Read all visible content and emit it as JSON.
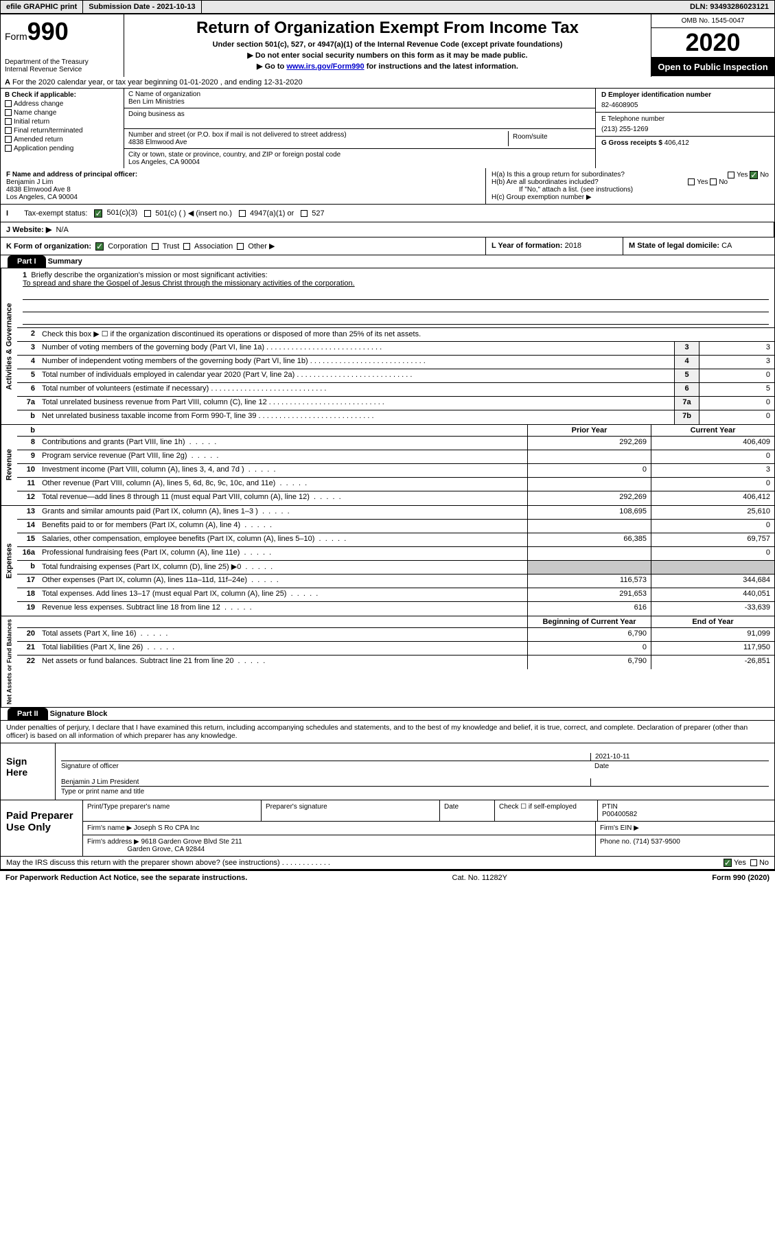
{
  "topbar": {
    "efile": "efile GRAPHIC print",
    "submission": "Submission Date - 2021-10-13",
    "dln": "DLN: 93493286023121"
  },
  "header": {
    "form_label": "Form",
    "form_num": "990",
    "dept": "Department of the Treasury\nInternal Revenue Service",
    "title": "Return of Organization Exempt From Income Tax",
    "subtitle": "Under section 501(c), 527, or 4947(a)(1) of the Internal Revenue Code (except private foundations)",
    "note1": "▶ Do not enter social security numbers on this form as it may be made public.",
    "note2_pre": "▶ Go to ",
    "note2_link": "www.irs.gov/Form990",
    "note2_post": " for instructions and the latest information.",
    "omb": "OMB No. 1545-0047",
    "year": "2020",
    "open": "Open to Public Inspection"
  },
  "section_a": "For the 2020 calendar year, or tax year beginning 01-01-2020    , and ending 12-31-2020",
  "box_b": {
    "hdr": "B Check if applicable:",
    "items": [
      "Address change",
      "Name change",
      "Initial return",
      "Final return/terminated",
      "Amended return",
      "Application pending"
    ]
  },
  "box_c": {
    "name_lbl": "C Name of organization",
    "name": "Ben Lim Ministries",
    "dba_lbl": "Doing business as",
    "addr_lbl": "Number and street (or P.O. box if mail is not delivered to street address)",
    "room_lbl": "Room/suite",
    "addr": "4838 Elmwood Ave",
    "city_lbl": "City or town, state or province, country, and ZIP or foreign postal code",
    "city": "Los Angeles, CA   90004"
  },
  "box_d": {
    "ein_lbl": "D Employer identification number",
    "ein": "82-4608905",
    "phone_lbl": "E Telephone number",
    "phone": "(213) 255-1269",
    "gross_lbl": "G Gross receipts $",
    "gross": "406,412"
  },
  "box_f": {
    "lbl": "F  Name and address of principal officer:",
    "name": "Benjamin J Lim",
    "addr1": "4838 Elmwood Ave 8",
    "addr2": "Los Angeles, CA   90004"
  },
  "box_h": {
    "ha": "H(a)  Is this a group return for subordinates?",
    "hb": "H(b)  Are all subordinates included?",
    "hb_note": "If \"No,\" attach a list. (see instructions)",
    "hc": "H(c)  Group exemption number ▶"
  },
  "tax_status": {
    "lbl": "Tax-exempt status:",
    "opts": [
      "501(c)(3)",
      "501(c) (  ) ◀ (insert no.)",
      "4947(a)(1) or",
      "527"
    ]
  },
  "website": {
    "lbl": "J  Website: ▶",
    "val": "N/A"
  },
  "row_k": {
    "k": "K Form of organization:",
    "opts": [
      "Corporation",
      "Trust",
      "Association",
      "Other ▶"
    ],
    "l_lbl": "L Year of formation:",
    "l_val": "2018",
    "m_lbl": "M State of legal domicile:",
    "m_val": "CA"
  },
  "part1": {
    "hdr": "Part I",
    "title": "Summary",
    "q1": "Briefly describe the organization's mission or most significant activities:",
    "mission": "To spread and share the Gospel of Jesus Christ through the missionary activities of the corporation.",
    "q2": "Check this box ▶ ☐  if the organization discontinued its operations or disposed of more than 25% of its net assets.",
    "side1": "Activities & Governance",
    "side2": "Revenue",
    "side3": "Expenses",
    "side4": "Net Assets or Fund Balances",
    "lines_gov": [
      {
        "n": "3",
        "t": "Number of voting members of the governing body (Part VI, line 1a)",
        "box": "3",
        "v": "3"
      },
      {
        "n": "4",
        "t": "Number of independent voting members of the governing body (Part VI, line 1b)",
        "box": "4",
        "v": "3"
      },
      {
        "n": "5",
        "t": "Total number of individuals employed in calendar year 2020 (Part V, line 2a)",
        "box": "5",
        "v": "0"
      },
      {
        "n": "6",
        "t": "Total number of volunteers (estimate if necessary)",
        "box": "6",
        "v": "5"
      },
      {
        "n": "7a",
        "t": "Total unrelated business revenue from Part VIII, column (C), line 12",
        "box": "7a",
        "v": "0"
      },
      {
        "n": "b",
        "t": "Net unrelated business taxable income from Form 990-T, line 39",
        "box": "7b",
        "v": "0"
      }
    ],
    "hdr_prior": "Prior Year",
    "hdr_current": "Current Year",
    "lines_rev": [
      {
        "n": "8",
        "t": "Contributions and grants (Part VIII, line 1h)",
        "c1": "292,269",
        "c2": "406,409"
      },
      {
        "n": "9",
        "t": "Program service revenue (Part VIII, line 2g)",
        "c1": "",
        "c2": "0"
      },
      {
        "n": "10",
        "t": "Investment income (Part VIII, column (A), lines 3, 4, and 7d )",
        "c1": "0",
        "c2": "3"
      },
      {
        "n": "11",
        "t": "Other revenue (Part VIII, column (A), lines 5, 6d, 8c, 9c, 10c, and 11e)",
        "c1": "",
        "c2": "0"
      },
      {
        "n": "12",
        "t": "Total revenue—add lines 8 through 11 (must equal Part VIII, column (A), line 12)",
        "c1": "292,269",
        "c2": "406,412"
      }
    ],
    "lines_exp": [
      {
        "n": "13",
        "t": "Grants and similar amounts paid (Part IX, column (A), lines 1–3 )",
        "c1": "108,695",
        "c2": "25,610"
      },
      {
        "n": "14",
        "t": "Benefits paid to or for members (Part IX, column (A), line 4)",
        "c1": "",
        "c2": "0"
      },
      {
        "n": "15",
        "t": "Salaries, other compensation, employee benefits (Part IX, column (A), lines 5–10)",
        "c1": "66,385",
        "c2": "69,757"
      },
      {
        "n": "16a",
        "t": "Professional fundraising fees (Part IX, column (A), line 11e)",
        "c1": "",
        "c2": "0"
      },
      {
        "n": "b",
        "t": "Total fundraising expenses (Part IX, column (D), line 25) ▶0",
        "c1": "",
        "c2": "",
        "grey": true
      },
      {
        "n": "17",
        "t": "Other expenses (Part IX, column (A), lines 11a–11d, 11f–24e)",
        "c1": "116,573",
        "c2": "344,684"
      },
      {
        "n": "18",
        "t": "Total expenses. Add lines 13–17 (must equal Part IX, column (A), line 25)",
        "c1": "291,653",
        "c2": "440,051"
      },
      {
        "n": "19",
        "t": "Revenue less expenses. Subtract line 18 from line 12",
        "c1": "616",
        "c2": "-33,639"
      }
    ],
    "hdr_begin": "Beginning of Current Year",
    "hdr_end": "End of Year",
    "lines_net": [
      {
        "n": "20",
        "t": "Total assets (Part X, line 16)",
        "c1": "6,790",
        "c2": "91,099"
      },
      {
        "n": "21",
        "t": "Total liabilities (Part X, line 26)",
        "c1": "0",
        "c2": "117,950"
      },
      {
        "n": "22",
        "t": "Net assets or fund balances. Subtract line 21 from line 20",
        "c1": "6,790",
        "c2": "-26,851"
      }
    ]
  },
  "part2": {
    "hdr": "Part II",
    "title": "Signature Block",
    "perjury": "Under penalties of perjury, I declare that I have examined this return, including accompanying schedules and statements, and to the best of my knowledge and belief, it is true, correct, and complete. Declaration of preparer (other than officer) is based on all information of which preparer has any knowledge.",
    "sign_here": "Sign Here",
    "sig_officer": "Signature of officer",
    "date_lbl": "Date",
    "date_val": "2021-10-11",
    "name_title": "Benjamin J Lim  President",
    "name_title_lbl": "Type or print name and title",
    "paid": "Paid Preparer Use Only",
    "prep_name_lbl": "Print/Type preparer's name",
    "prep_sig_lbl": "Preparer's signature",
    "check_lbl": "Check ☐ if self-employed",
    "ptin_lbl": "PTIN",
    "ptin": "P00400582",
    "firm_name_lbl": "Firm's name    ▶",
    "firm_name": "Joseph S Ro CPA Inc",
    "firm_ein_lbl": "Firm's EIN ▶",
    "firm_addr_lbl": "Firm's address ▶",
    "firm_addr1": "9618 Garden Grove Blvd Ste 211",
    "firm_addr2": "Garden Grove, CA   92844",
    "phone_lbl": "Phone no.",
    "phone": "(714) 537-9500",
    "discuss": "May the IRS discuss this return with the preparer shown above? (see instructions)"
  },
  "footer": {
    "pra": "For Paperwork Reduction Act Notice, see the separate instructions.",
    "cat": "Cat. No. 11282Y",
    "form": "Form 990 (2020)"
  }
}
